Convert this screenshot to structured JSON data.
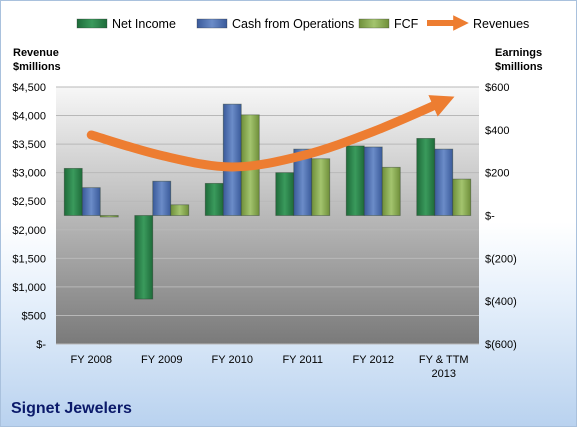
{
  "company": "Signet Jewelers",
  "chart_data": {
    "type": "bar",
    "categories": [
      "FY 2008",
      "FY 2009",
      "FY 2010",
      "FY 2011",
      "FY 2012",
      "FY & TTM 2013"
    ],
    "series": [
      {
        "name": "Net Income",
        "axis": "right",
        "color": "#2e8b4f",
        "values": [
          220,
          -390,
          150,
          200,
          325,
          360
        ]
      },
      {
        "name": "Cash from Operations",
        "axis": "right",
        "color": "#4f73b8",
        "values": [
          130,
          160,
          520,
          310,
          320,
          310
        ]
      },
      {
        "name": "FCF",
        "axis": "right",
        "color": "#8fb35a",
        "values": [
          0,
          50,
          470,
          265,
          225,
          170
        ]
      },
      {
        "name": "Revenues",
        "axis": "left",
        "type": "line",
        "color": "#ed7d31",
        "values": [
          3660,
          3300,
          3100,
          3300,
          3720,
          4250
        ]
      }
    ],
    "left_axis": {
      "title": "Revenue\n$millions",
      "ylim": [
        0,
        4500
      ],
      "ticks": [
        0,
        500,
        1000,
        1500,
        2000,
        2500,
        3000,
        3500,
        4000,
        4500
      ],
      "tick_labels": [
        "$-",
        "$500",
        "$1,000",
        "$1,500",
        "$2,000",
        "$2,500",
        "$3,000",
        "$3,500",
        "$4,000",
        "$4,500"
      ]
    },
    "right_axis": {
      "title": "Earnings\n$millions",
      "ylim": [
        -600,
        600
      ],
      "ticks": [
        -600,
        -400,
        -200,
        0,
        200,
        400,
        600
      ],
      "tick_labels": [
        "$(600)",
        "$(400)",
        "$(200)",
        "$-",
        "$200",
        "$400",
        "$600"
      ]
    },
    "legend": [
      "Net Income",
      "Cash from Operations",
      "FCF",
      "Revenues"
    ],
    "legend_position": "top",
    "grid": true
  }
}
